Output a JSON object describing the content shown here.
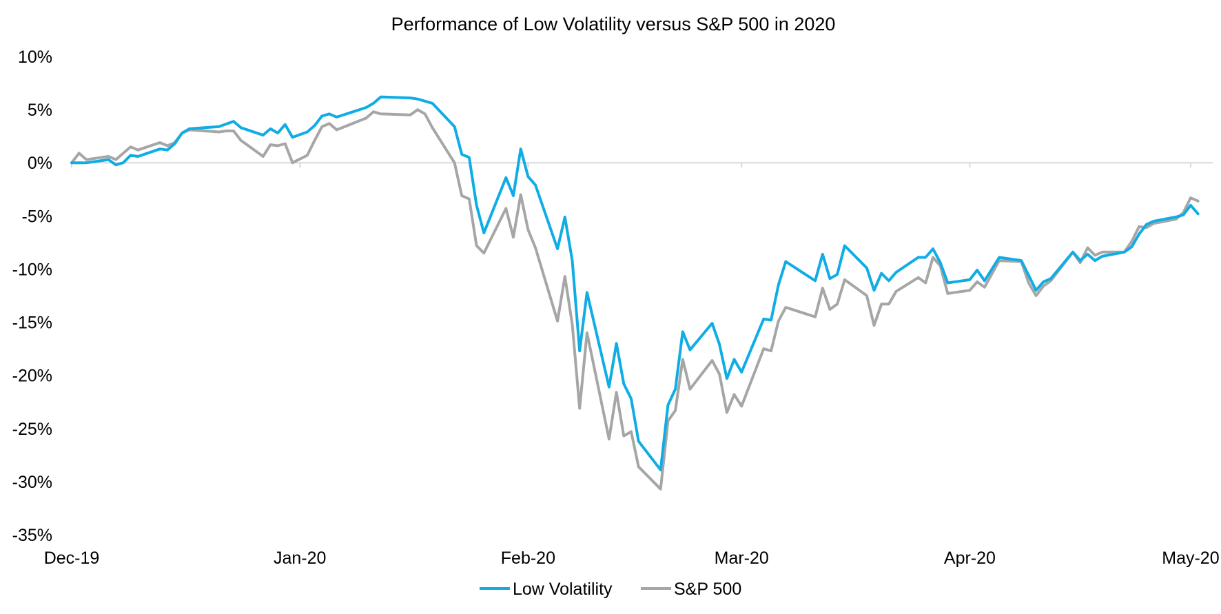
{
  "chart_data": {
    "type": "line",
    "title": "Performance of Low Volatility versus S&P 500 in 2020",
    "xlabel": "",
    "ylabel": "",
    "x_ticks": [
      "Dec-19",
      "Jan-20",
      "Feb-20",
      "Mar-20",
      "Apr-20",
      "May-20"
    ],
    "x_tick_dates": [
      "2019-12-01",
      "2020-01-01",
      "2020-02-01",
      "2020-03-01",
      "2020-04-01",
      "2020-05-01"
    ],
    "y_ticks": [
      "10%",
      "5%",
      "0%",
      "-5%",
      "-10%",
      "-15%",
      "-20%",
      "-25%",
      "-30%",
      "-35%"
    ],
    "xlim": [
      "2019-12-01",
      "2020-05-04"
    ],
    "ylim": [
      -35,
      10
    ],
    "grid": false,
    "legend_position": "bottom",
    "series": [
      {
        "name": "Low Volatility",
        "color": "#10ADE5",
        "points": [
          [
            "2019-12-01",
            0.0
          ],
          [
            "2019-12-02",
            0.0
          ],
          [
            "2019-12-03",
            0.0
          ],
          [
            "2019-12-06",
            0.3
          ],
          [
            "2019-12-07",
            -0.2
          ],
          [
            "2019-12-08",
            0.0
          ],
          [
            "2019-12-09",
            0.7
          ],
          [
            "2019-12-10",
            0.6
          ],
          [
            "2019-12-13",
            1.3
          ],
          [
            "2019-12-14",
            1.2
          ],
          [
            "2019-12-15",
            1.8
          ],
          [
            "2019-12-16",
            2.8
          ],
          [
            "2019-12-17",
            3.2
          ],
          [
            "2019-12-21",
            3.4
          ],
          [
            "2019-12-23",
            3.9
          ],
          [
            "2019-12-24",
            3.3
          ],
          [
            "2019-12-27",
            2.6
          ],
          [
            "2019-12-28",
            3.2
          ],
          [
            "2019-12-29",
            2.8
          ],
          [
            "2019-12-30",
            3.6
          ],
          [
            "2019-12-31",
            2.4
          ],
          [
            "2020-01-02",
            2.9
          ],
          [
            "2020-01-03",
            3.5
          ],
          [
            "2020-01-04",
            4.4
          ],
          [
            "2020-01-05",
            4.6
          ],
          [
            "2020-01-06",
            4.3
          ],
          [
            "2020-01-10",
            5.2
          ],
          [
            "2020-01-11",
            5.6
          ],
          [
            "2020-01-12",
            6.2
          ],
          [
            "2020-01-16",
            6.1
          ],
          [
            "2020-01-17",
            6.0
          ],
          [
            "2020-01-18",
            5.8
          ],
          [
            "2020-01-19",
            5.6
          ],
          [
            "2020-01-22",
            3.4
          ],
          [
            "2020-01-23",
            0.8
          ],
          [
            "2020-01-24",
            0.5
          ],
          [
            "2020-01-25",
            -4.0
          ],
          [
            "2020-01-26",
            -6.6
          ],
          [
            "2020-01-29",
            -1.4
          ],
          [
            "2020-01-30",
            -3.1
          ],
          [
            "2020-01-31",
            1.3
          ],
          [
            "2020-02-01",
            -1.3
          ],
          [
            "2020-02-02",
            -2.1
          ],
          [
            "2020-02-05",
            -8.1
          ],
          [
            "2020-02-06",
            -5.1
          ],
          [
            "2020-02-07",
            -9.2
          ],
          [
            "2020-02-08",
            -17.7
          ],
          [
            "2020-02-09",
            -12.2
          ],
          [
            "2020-02-12",
            -21.1
          ],
          [
            "2020-02-13",
            -17.0
          ],
          [
            "2020-02-14",
            -20.8
          ],
          [
            "2020-02-15",
            -22.2
          ],
          [
            "2020-02-16",
            -26.2
          ],
          [
            "2020-02-19",
            -28.9
          ],
          [
            "2020-02-20",
            -22.8
          ],
          [
            "2020-02-21",
            -21.3
          ],
          [
            "2020-02-22",
            -15.9
          ],
          [
            "2020-02-23",
            -17.6
          ],
          [
            "2020-02-26",
            -15.1
          ],
          [
            "2020-02-27",
            -17.1
          ],
          [
            "2020-02-28",
            -20.3
          ],
          [
            "2020-02-29",
            -18.5
          ],
          [
            "2020-03-01",
            -19.7
          ],
          [
            "2020-03-04",
            -14.7
          ],
          [
            "2020-03-05",
            -14.8
          ],
          [
            "2020-03-06",
            -11.5
          ],
          [
            "2020-03-07",
            -9.3
          ],
          [
            "2020-03-11",
            -11.1
          ],
          [
            "2020-03-12",
            -8.6
          ],
          [
            "2020-03-13",
            -10.9
          ],
          [
            "2020-03-14",
            -10.5
          ],
          [
            "2020-03-15",
            -7.8
          ],
          [
            "2020-03-18",
            -9.9
          ],
          [
            "2020-03-19",
            -12.0
          ],
          [
            "2020-03-20",
            -10.4
          ],
          [
            "2020-03-21",
            -11.1
          ],
          [
            "2020-03-22",
            -10.3
          ],
          [
            "2020-03-25",
            -8.9
          ],
          [
            "2020-03-26",
            -8.9
          ],
          [
            "2020-03-27",
            -8.1
          ],
          [
            "2020-03-28",
            -9.4
          ],
          [
            "2020-03-29",
            -11.3
          ],
          [
            "2020-04-01",
            -11.0
          ],
          [
            "2020-04-02",
            -10.1
          ],
          [
            "2020-04-03",
            -11.1
          ],
          [
            "2020-04-05",
            -8.9
          ],
          [
            "2020-04-08",
            -9.2
          ],
          [
            "2020-04-09",
            -10.6
          ],
          [
            "2020-04-10",
            -12.0
          ],
          [
            "2020-04-11",
            -11.2
          ],
          [
            "2020-04-12",
            -10.9
          ],
          [
            "2020-04-15",
            -8.4
          ],
          [
            "2020-04-16",
            -9.2
          ],
          [
            "2020-04-17",
            -8.6
          ],
          [
            "2020-04-18",
            -9.2
          ],
          [
            "2020-04-19",
            -8.8
          ],
          [
            "2020-04-22",
            -8.4
          ],
          [
            "2020-04-23",
            -7.9
          ],
          [
            "2020-04-24",
            -6.7
          ],
          [
            "2020-04-25",
            -5.8
          ],
          [
            "2020-04-26",
            -5.5
          ],
          [
            "2020-04-29",
            -5.1
          ],
          [
            "2020-04-30",
            -4.9
          ],
          [
            "2020-05-01",
            -4.0
          ],
          [
            "2020-05-02",
            -4.8
          ]
        ]
      },
      {
        "name": "S&P 500",
        "color": "#A6A6A6",
        "points": [
          [
            "2019-12-01",
            0.0
          ],
          [
            "2019-12-02",
            0.9
          ],
          [
            "2019-12-03",
            0.3
          ],
          [
            "2019-12-06",
            0.6
          ],
          [
            "2019-12-07",
            0.3
          ],
          [
            "2019-12-09",
            1.5
          ],
          [
            "2019-12-10",
            1.2
          ],
          [
            "2019-12-13",
            1.9
          ],
          [
            "2019-12-14",
            1.6
          ],
          [
            "2019-12-15",
            1.9
          ],
          [
            "2019-12-16",
            2.8
          ],
          [
            "2019-12-17",
            3.1
          ],
          [
            "2019-12-21",
            2.9
          ],
          [
            "2019-12-22",
            3.0
          ],
          [
            "2019-12-23",
            3.0
          ],
          [
            "2019-12-24",
            2.1
          ],
          [
            "2019-12-27",
            0.6
          ],
          [
            "2019-12-28",
            1.7
          ],
          [
            "2019-12-29",
            1.6
          ],
          [
            "2019-12-30",
            1.8
          ],
          [
            "2019-12-31",
            0.0
          ],
          [
            "2020-01-02",
            0.7
          ],
          [
            "2020-01-03",
            2.1
          ],
          [
            "2020-01-04",
            3.4
          ],
          [
            "2020-01-05",
            3.7
          ],
          [
            "2020-01-06",
            3.1
          ],
          [
            "2020-01-10",
            4.2
          ],
          [
            "2020-01-11",
            4.8
          ],
          [
            "2020-01-12",
            4.6
          ],
          [
            "2020-01-16",
            4.5
          ],
          [
            "2020-01-17",
            5.0
          ],
          [
            "2020-01-18",
            4.6
          ],
          [
            "2020-01-19",
            3.3
          ],
          [
            "2020-01-22",
            0.0
          ],
          [
            "2020-01-23",
            -3.1
          ],
          [
            "2020-01-24",
            -3.4
          ],
          [
            "2020-01-25",
            -7.8
          ],
          [
            "2020-01-26",
            -8.5
          ],
          [
            "2020-01-29",
            -4.3
          ],
          [
            "2020-01-30",
            -7.0
          ],
          [
            "2020-01-31",
            -3.0
          ],
          [
            "2020-02-01",
            -6.3
          ],
          [
            "2020-02-02",
            -8.0
          ],
          [
            "2020-02-05",
            -14.9
          ],
          [
            "2020-02-06",
            -10.7
          ],
          [
            "2020-02-07",
            -15.2
          ],
          [
            "2020-02-08",
            -23.1
          ],
          [
            "2020-02-09",
            -16.0
          ],
          [
            "2020-02-12",
            -26.0
          ],
          [
            "2020-02-13",
            -21.6
          ],
          [
            "2020-02-14",
            -25.7
          ],
          [
            "2020-02-15",
            -25.3
          ],
          [
            "2020-02-16",
            -28.6
          ],
          [
            "2020-02-19",
            -30.7
          ],
          [
            "2020-02-20",
            -24.3
          ],
          [
            "2020-02-21",
            -23.3
          ],
          [
            "2020-02-22",
            -18.5
          ],
          [
            "2020-02-23",
            -21.3
          ],
          [
            "2020-02-26",
            -18.6
          ],
          [
            "2020-02-27",
            -19.9
          ],
          [
            "2020-02-28",
            -23.5
          ],
          [
            "2020-02-29",
            -21.8
          ],
          [
            "2020-03-01",
            -22.9
          ],
          [
            "2020-03-04",
            -17.5
          ],
          [
            "2020-03-05",
            -17.7
          ],
          [
            "2020-03-06",
            -14.9
          ],
          [
            "2020-03-07",
            -13.6
          ],
          [
            "2020-03-11",
            -14.5
          ],
          [
            "2020-03-12",
            -11.8
          ],
          [
            "2020-03-13",
            -13.8
          ],
          [
            "2020-03-14",
            -13.3
          ],
          [
            "2020-03-15",
            -11.0
          ],
          [
            "2020-03-18",
            -12.5
          ],
          [
            "2020-03-19",
            -15.3
          ],
          [
            "2020-03-20",
            -13.3
          ],
          [
            "2020-03-21",
            -13.3
          ],
          [
            "2020-03-22",
            -12.1
          ],
          [
            "2020-03-25",
            -10.8
          ],
          [
            "2020-03-26",
            -11.3
          ],
          [
            "2020-03-27",
            -8.9
          ],
          [
            "2020-03-28",
            -9.7
          ],
          [
            "2020-03-29",
            -12.3
          ],
          [
            "2020-04-01",
            -12.0
          ],
          [
            "2020-04-02",
            -11.2
          ],
          [
            "2020-04-03",
            -11.7
          ],
          [
            "2020-04-05",
            -9.2
          ],
          [
            "2020-04-08",
            -9.3
          ],
          [
            "2020-04-09",
            -11.3
          ],
          [
            "2020-04-10",
            -12.5
          ],
          [
            "2020-04-11",
            -11.6
          ],
          [
            "2020-04-12",
            -11.1
          ],
          [
            "2020-04-15",
            -8.4
          ],
          [
            "2020-04-16",
            -9.4
          ],
          [
            "2020-04-17",
            -8.0
          ],
          [
            "2020-04-18",
            -8.7
          ],
          [
            "2020-04-19",
            -8.4
          ],
          [
            "2020-04-22",
            -8.4
          ],
          [
            "2020-04-23",
            -7.4
          ],
          [
            "2020-04-24",
            -6.0
          ],
          [
            "2020-04-25",
            -6.1
          ],
          [
            "2020-04-26",
            -5.7
          ],
          [
            "2020-04-29",
            -5.3
          ],
          [
            "2020-04-30",
            -4.7
          ],
          [
            "2020-05-01",
            -3.3
          ],
          [
            "2020-05-02",
            -3.6
          ]
        ]
      }
    ]
  }
}
